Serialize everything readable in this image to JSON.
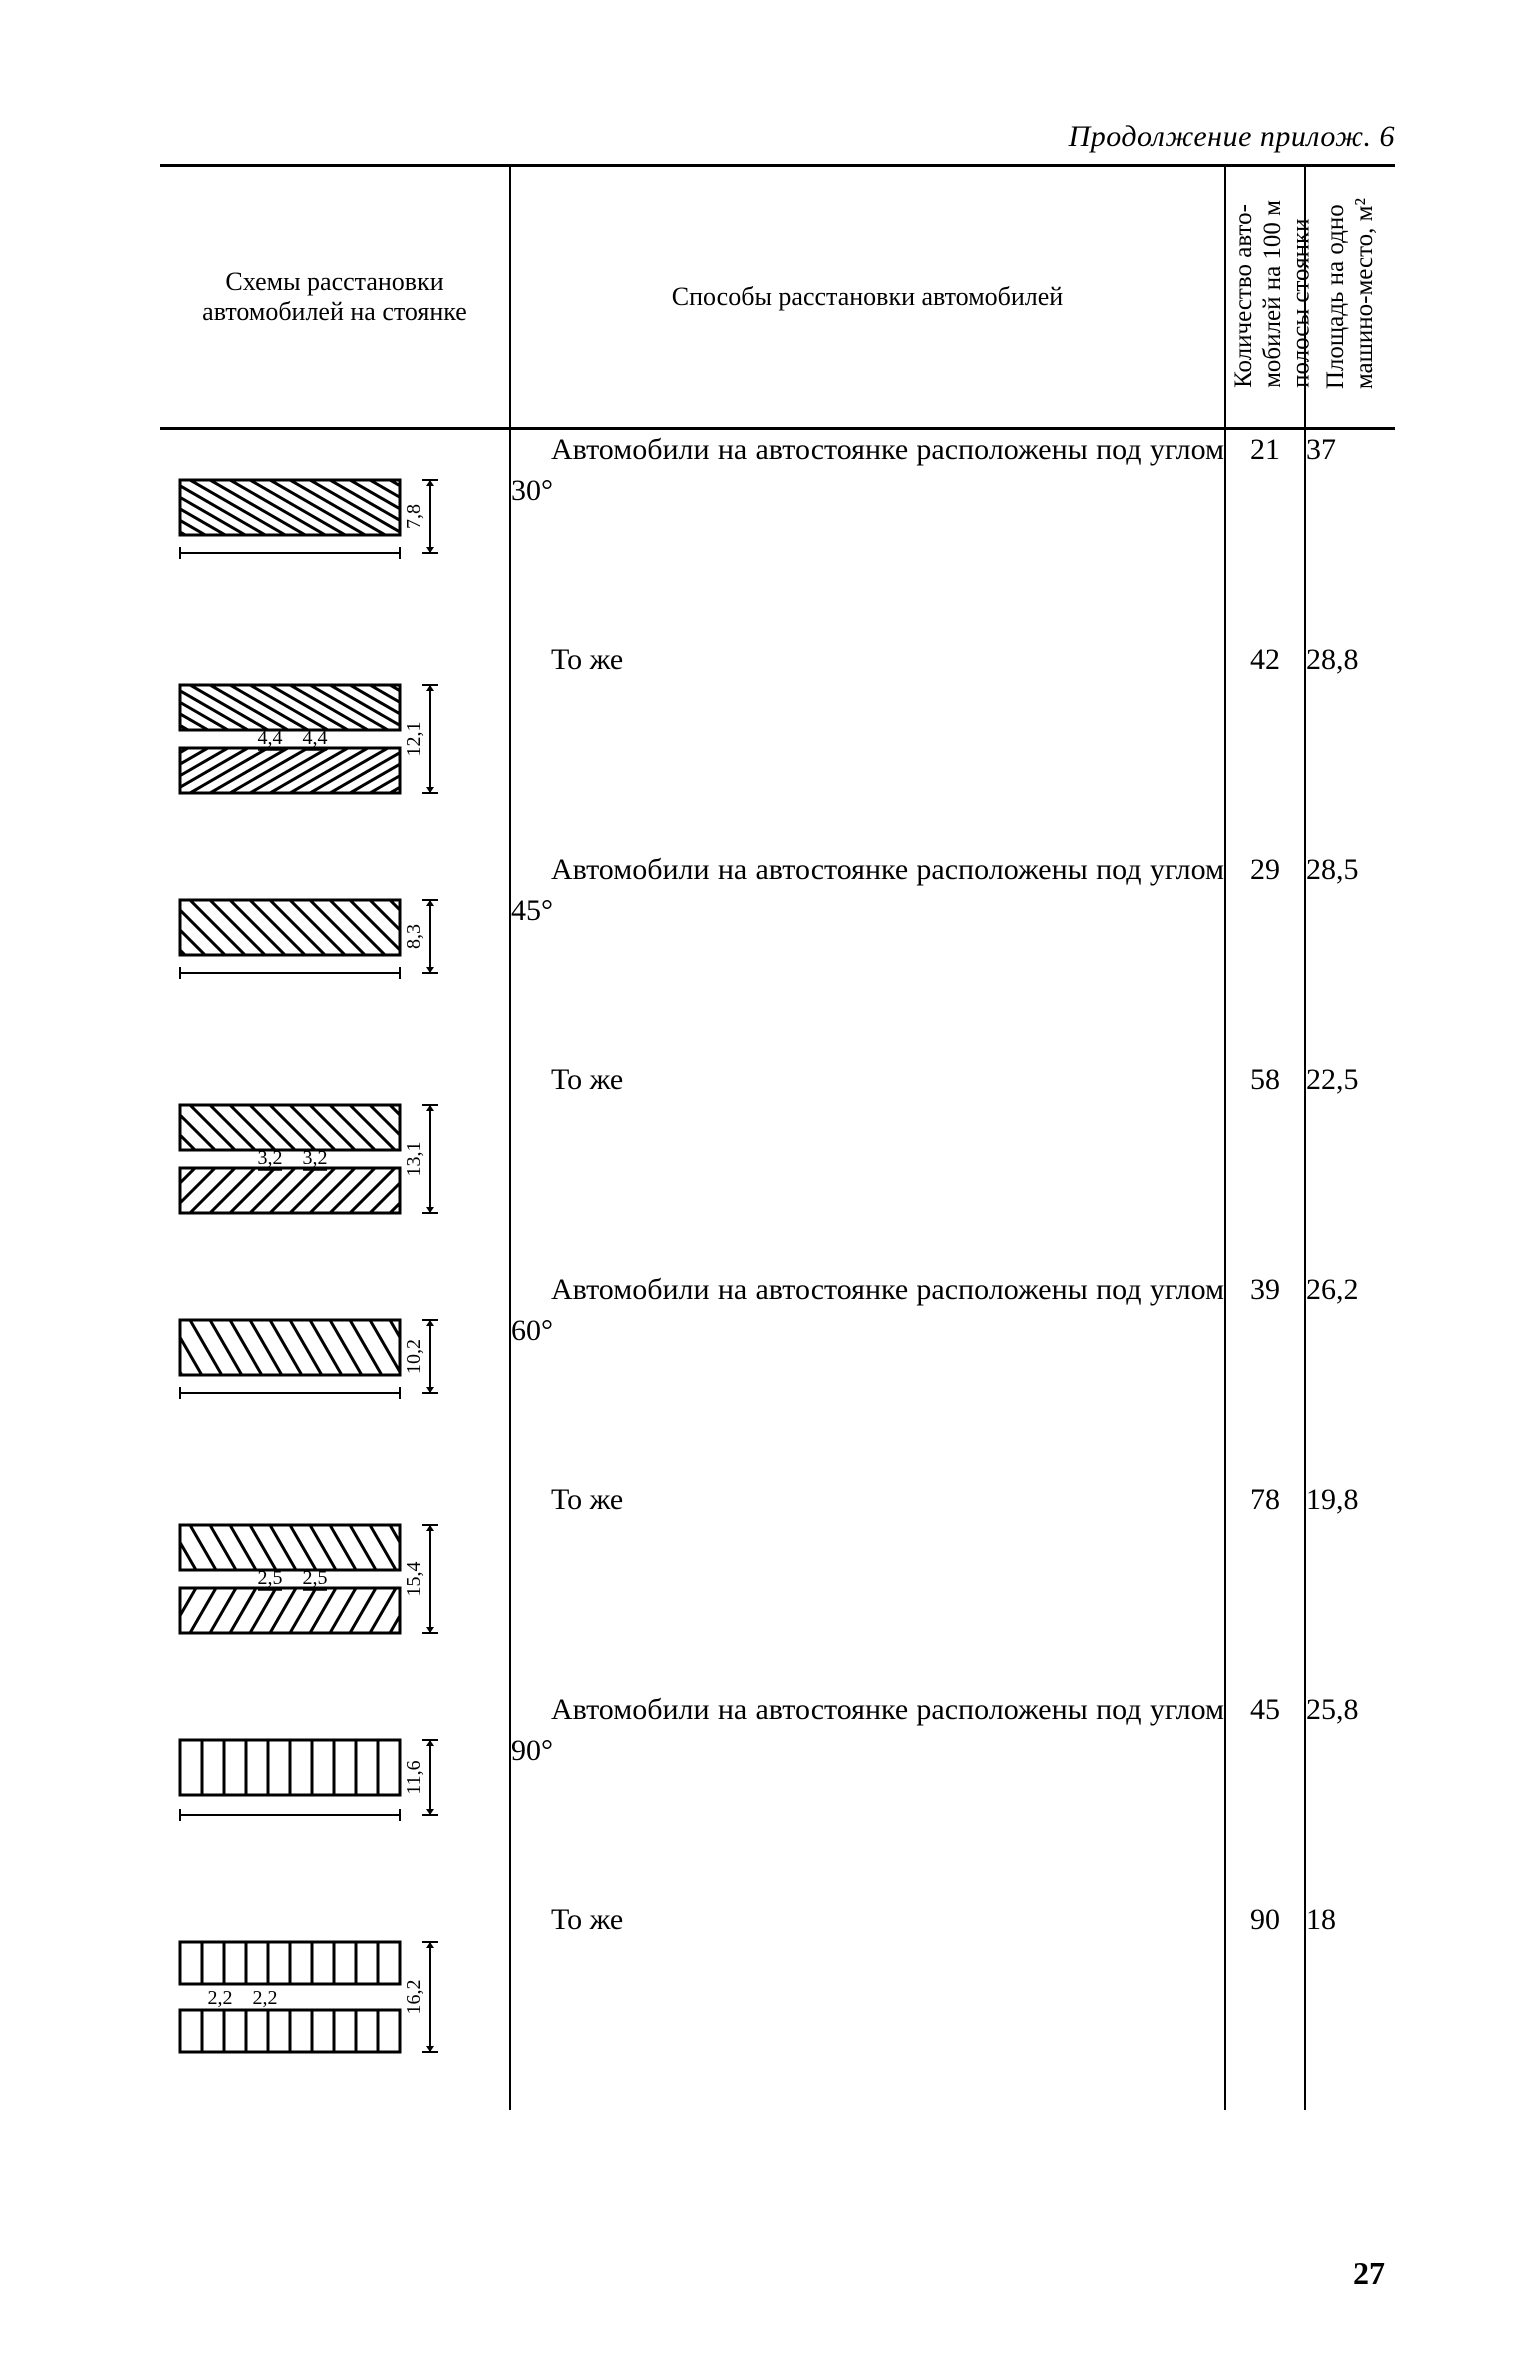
{
  "continuation": "Продолжение прилож. 6",
  "page_number": "27",
  "colors": {
    "ink": "#000000",
    "paper": "#ffffff"
  },
  "fonts": {
    "body_family": "Times New Roman",
    "body_size_pt": 11,
    "header_size_pt": 9
  },
  "headers": {
    "col1": "Схемы расстановки автомобилей на стоянке",
    "col2": "Способы расстановки автомобилей",
    "col3": "Количество авто-\nмобилей на 100 м\nполосы стоянки",
    "col4": "Площадь на одно\nмашино-место, м²"
  },
  "rows": [
    {
      "description": "Автомобили на автостоянке рас­положены под углом 30°",
      "count": "21",
      "area": "37",
      "diagram": {
        "type": "angle_single",
        "angle": 30,
        "rows": 1,
        "height_label": "7,8"
      }
    },
    {
      "description": "То же",
      "count": "42",
      "area": "28,8",
      "diagram": {
        "type": "angle_double",
        "angle": 30,
        "rows": 2,
        "height_label": "12,1",
        "inner_labels": [
          "4,4",
          "4,4"
        ]
      }
    },
    {
      "description": "Автомобили на автостоянке рас­положены под углом 45°",
      "count": "29",
      "area": "28,5",
      "diagram": {
        "type": "angle_single",
        "angle": 45,
        "rows": 1,
        "height_label": "8,3"
      }
    },
    {
      "description": "То же",
      "count": "58",
      "area": "22,5",
      "diagram": {
        "type": "angle_double",
        "angle": 45,
        "rows": 2,
        "height_label": "13,1",
        "inner_labels": [
          "3,2",
          "3,2"
        ]
      }
    },
    {
      "description": "Автомобили на автостоянке рас­положены под углом 60°",
      "count": "39",
      "area": "26,2",
      "diagram": {
        "type": "angle_single",
        "angle": 60,
        "rows": 1,
        "height_label": "10,2"
      }
    },
    {
      "description": "То же",
      "count": "78",
      "area": "19,8",
      "diagram": {
        "type": "angle_double",
        "angle": 60,
        "rows": 2,
        "height_label": "15,4",
        "inner_labels": [
          "2,5",
          "2,5"
        ]
      }
    },
    {
      "description": "Автомобили на автостоянке рас­положены под углом 90°",
      "count": "45",
      "area": "25,8",
      "diagram": {
        "type": "perp_single",
        "angle": 90,
        "rows": 1,
        "height_label": "11,6"
      }
    },
    {
      "description": "То же",
      "count": "90",
      "area": "18",
      "diagram": {
        "type": "perp_double",
        "angle": 90,
        "rows": 2,
        "height_label": "16,2",
        "inner_labels": [
          "2,2",
          "2,2"
        ]
      }
    }
  ]
}
